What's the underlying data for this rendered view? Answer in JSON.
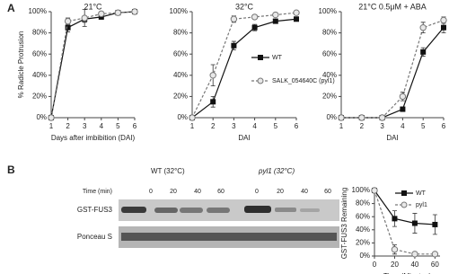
{
  "panels": {
    "a": "A",
    "b": "B"
  },
  "blot": {
    "groups": [
      "WT (32°C)",
      "pyl1 (32°C)"
    ],
    "time_label": "Time (min)",
    "times": [
      "0",
      "20",
      "40",
      "60",
      "0",
      "20",
      "40",
      "60"
    ],
    "rows": [
      "GST-FUS3",
      "Ponceau S"
    ]
  },
  "chart_data": [
    {
      "type": "line",
      "title": "21°C",
      "xlabel": "Days after imbibition (DAI)",
      "ylabel": "% Radicle Protrusion",
      "x": [
        1,
        2,
        3,
        4,
        5,
        6
      ],
      "xlim": [
        1,
        6
      ],
      "xticks": [
        1,
        2,
        3,
        4,
        5,
        6
      ],
      "ylim": [
        0,
        100
      ],
      "yticks": [
        {
          "value": 0,
          "label": "0%"
        },
        {
          "value": 20,
          "label": "20%"
        },
        {
          "value": 40,
          "label": "40%"
        },
        {
          "value": 60,
          "label": "60%"
        },
        {
          "value": 80,
          "label": "80%"
        },
        {
          "value": 100,
          "label": "100%"
        }
      ],
      "series": [
        {
          "color": "#111111",
          "marker": "square",
          "dashed": false,
          "values": [
            0,
            85,
            93,
            95,
            99,
            100
          ],
          "errors": [
            0,
            4,
            3,
            2,
            1,
            0
          ]
        },
        {
          "color": "#777777",
          "marker": "circle",
          "dashed": true,
          "values": [
            0,
            91,
            94,
            98,
            99,
            100
          ],
          "errors": [
            0,
            3,
            8,
            2,
            1,
            0
          ]
        }
      ]
    },
    {
      "type": "line",
      "title": "32°C",
      "xlabel": "DAI",
      "legend": "center right",
      "x": [
        1,
        2,
        3,
        4,
        5,
        6
      ],
      "xlim": [
        1,
        6
      ],
      "xticks": [
        1,
        2,
        3,
        4,
        5,
        6
      ],
      "ylim": [
        0,
        100
      ],
      "yticks": [
        {
          "value": 0,
          "label": "0%"
        },
        {
          "value": 20,
          "label": "20%"
        },
        {
          "value": 40,
          "label": "40%"
        },
        {
          "value": 60,
          "label": "60%"
        },
        {
          "value": 80,
          "label": "80%"
        },
        {
          "value": 100,
          "label": "100%"
        }
      ],
      "series": [
        {
          "name": "WT",
          "color": "#111111",
          "marker": "square",
          "dashed": false,
          "values": [
            0,
            15,
            68,
            85,
            91,
            93
          ],
          "errors": [
            0,
            5,
            4,
            3,
            2,
            2
          ]
        },
        {
          "name": "SALK_054640C (pyl1)",
          "color": "#777777",
          "marker": "circle",
          "dashed": true,
          "values": [
            0,
            40,
            93,
            95,
            97,
            99
          ],
          "errors": [
            0,
            10,
            3,
            2,
            1,
            1
          ]
        }
      ]
    },
    {
      "type": "line",
      "title": "21°C 0.5μM + ABA",
      "xlabel": "DAI",
      "x": [
        1,
        2,
        3,
        4,
        5,
        6
      ],
      "xlim": [
        1,
        6
      ],
      "xticks": [
        1,
        2,
        3,
        4,
        5,
        6
      ],
      "ylim": [
        0,
        100
      ],
      "yticks": [
        {
          "value": 0,
          "label": "0%"
        },
        {
          "value": 20,
          "label": "20%"
        },
        {
          "value": 40,
          "label": "40%"
        },
        {
          "value": 60,
          "label": "60%"
        },
        {
          "value": 80,
          "label": "80%"
        },
        {
          "value": 100,
          "label": "100%"
        }
      ],
      "series": [
        {
          "color": "#111111",
          "marker": "square",
          "dashed": false,
          "values": [
            0,
            0,
            0,
            8,
            62,
            85
          ],
          "errors": [
            0,
            0,
            0,
            2,
            4,
            5
          ]
        },
        {
          "color": "#777777",
          "marker": "circle",
          "dashed": true,
          "values": [
            0,
            0,
            0,
            20,
            85,
            92
          ],
          "errors": [
            0,
            0,
            1,
            4,
            5,
            3
          ]
        }
      ]
    },
    {
      "type": "line",
      "xlabel": "Time (Minutes)",
      "ylabel": "GST-FUS3 Remaining",
      "legend": "upper right",
      "x": [
        0,
        20,
        40,
        60
      ],
      "xlim": [
        0,
        65
      ],
      "xticks": [
        0,
        20,
        40,
        60
      ],
      "ylim": [
        0,
        100
      ],
      "yticks": [
        {
          "value": 0,
          "label": "0%"
        },
        {
          "value": 20,
          "label": "20%"
        },
        {
          "value": 40,
          "label": "40%"
        },
        {
          "value": 60,
          "label": "60%"
        },
        {
          "value": 80,
          "label": "80%"
        },
        {
          "value": 100,
          "label": "100%"
        }
      ],
      "series": [
        {
          "name": "WT",
          "color": "#111111",
          "marker": "square",
          "dashed": false,
          "values": [
            100,
            57,
            50,
            48
          ],
          "errors": [
            0,
            12,
            15,
            15
          ]
        },
        {
          "name": "pyl1",
          "color": "#777777",
          "marker": "circle",
          "dashed": true,
          "values": [
            100,
            10,
            3,
            3
          ],
          "errors": [
            0,
            7,
            3,
            3
          ]
        }
      ]
    }
  ]
}
